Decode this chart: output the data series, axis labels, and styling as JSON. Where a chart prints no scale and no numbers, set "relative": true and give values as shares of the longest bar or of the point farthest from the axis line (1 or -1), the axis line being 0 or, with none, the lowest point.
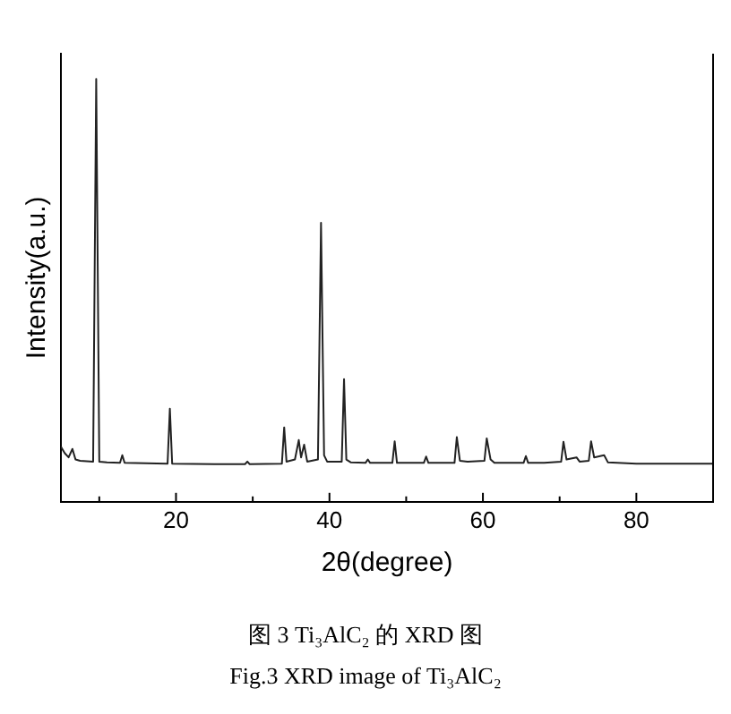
{
  "chart_data": {
    "type": "line",
    "relative": true,
    "xlabel": "2θ(degree)",
    "ylabel": "Intensity(a.u.)",
    "annotations": [
      "图 3 Ti₃AlC₂ 的 XRD 图",
      "Fig.3 XRD image of Ti₃AlC₂"
    ],
    "xlim": [
      5,
      90
    ],
    "xticks": [
      {
        "value": 10,
        "label": null
      },
      20,
      {
        "value": 30,
        "label": null
      },
      40,
      {
        "value": 50,
        "label": null
      },
      60,
      {
        "value": 70,
        "label": null
      },
      80
    ],
    "grid": false,
    "legend": false,
    "marker": "none",
    "line_style": "solid",
    "series": [
      {
        "color": "#222222",
        "x": [
          5,
          5.5,
          6,
          6.5,
          6.9,
          7.5,
          9.2,
          9.6,
          10.0,
          11,
          12.7,
          13,
          13.3,
          18.9,
          19.2,
          19.5,
          25,
          29,
          29.3,
          29.6,
          33.8,
          34.1,
          34.4,
          35.5,
          36.0,
          36.3,
          36.7,
          37.1,
          38.5,
          38.9,
          39.3,
          39.7,
          41.6,
          41.9,
          42.2,
          42.8,
          44.7,
          45.0,
          45.3,
          48.2,
          48.5,
          48.8,
          52.3,
          52.6,
          52.9,
          56.3,
          56.6,
          57,
          58,
          60.2,
          60.5,
          61,
          61.5,
          65.3,
          65.6,
          65.9,
          68,
          70.2,
          70.5,
          70.9,
          72.2,
          72.6,
          73.8,
          74.1,
          74.5,
          75.8,
          76.3,
          80,
          85,
          90
        ],
        "values": [
          0.13,
          0.115,
          0.105,
          0.125,
          0.1,
          0.097,
          0.095,
          1.0,
          0.095,
          0.093,
          0.092,
          0.11,
          0.092,
          0.09,
          0.22,
          0.09,
          0.089,
          0.089,
          0.095,
          0.089,
          0.09,
          0.176,
          0.095,
          0.1,
          0.146,
          0.105,
          0.135,
          0.095,
          0.1,
          0.66,
          0.11,
          0.095,
          0.095,
          0.29,
          0.1,
          0.093,
          0.092,
          0.1,
          0.092,
          0.092,
          0.143,
          0.092,
          0.092,
          0.107,
          0.092,
          0.092,
          0.153,
          0.097,
          0.095,
          0.097,
          0.15,
          0.1,
          0.092,
          0.092,
          0.108,
          0.092,
          0.092,
          0.095,
          0.142,
          0.1,
          0.105,
          0.095,
          0.097,
          0.143,
          0.105,
          0.11,
          0.093,
          0.09,
          0.09,
          0.09
        ]
      }
    ]
  }
}
